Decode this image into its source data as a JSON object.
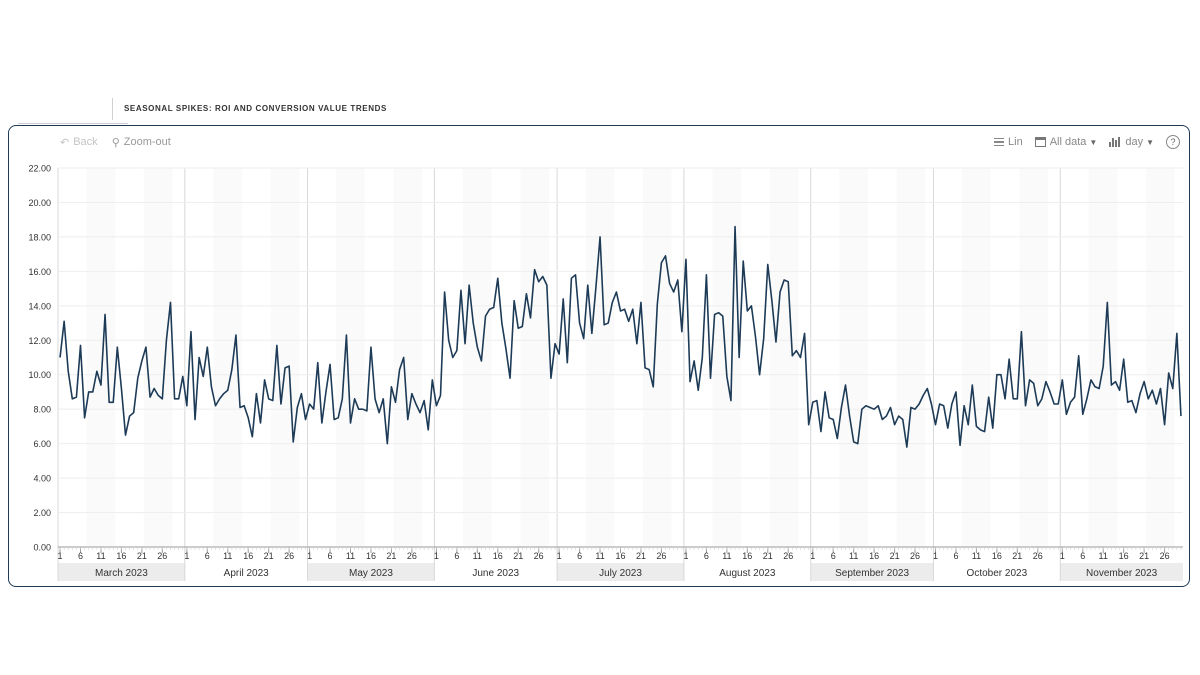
{
  "header": {
    "title": "SEASONAL SPIKES: ROI AND CONVERSION VALUE TRENDS"
  },
  "toolbar": {
    "back_label": "Back",
    "zoom_out_label": "Zoom-out",
    "scale_label": "Lin",
    "range_label": "All data",
    "granularity_label": "day",
    "help_label": "?",
    "icons": {
      "back": "back-arrow-icon",
      "zoom": "magnifier-minus-icon",
      "scale": "list-icon",
      "range": "calendar-icon",
      "granularity": "bar-chart-icon",
      "help": "help-icon"
    }
  },
  "colors": {
    "line": "#1d3b57",
    "frame": "#1d3b57",
    "band": "#ececec",
    "grid": "#eeeeee"
  },
  "chart_data": {
    "type": "line",
    "title": "SEASONAL SPIKES: ROI AND CONVERSION VALUE TRENDS",
    "xlabel": "",
    "ylabel": "",
    "ylim": [
      0,
      22
    ],
    "y_ticks": [
      "0.00",
      "2.00",
      "4.00",
      "6.00",
      "8.00",
      "10.00",
      "12.00",
      "14.00",
      "16.00",
      "18.00",
      "20.00",
      "22.00"
    ],
    "grid": true,
    "legend": "none",
    "x_start": "2023-03-01",
    "x_end": "2023-11-30",
    "months": [
      "March 2023",
      "April 2023",
      "May 2023",
      "June 2023",
      "July 2023",
      "August 2023",
      "September 2023",
      "October 2023",
      "November 2023"
    ],
    "month_days": [
      31,
      30,
      31,
      30,
      31,
      31,
      30,
      31,
      30
    ],
    "day_ticks": [
      "1",
      "6",
      "11",
      "16",
      "21",
      "26"
    ],
    "series": [
      {
        "name": "ROI",
        "values": [
          11.0,
          13.1,
          10.2,
          8.6,
          8.7,
          11.7,
          7.5,
          9.0,
          9.0,
          10.2,
          9.4,
          13.5,
          8.4,
          8.4,
          11.6,
          9.2,
          6.5,
          7.6,
          7.8,
          9.8,
          10.8,
          11.6,
          8.7,
          9.2,
          8.8,
          8.6,
          12.0,
          14.2,
          8.6,
          8.6,
          9.9,
          8.2,
          12.5,
          7.4,
          11.0,
          9.9,
          11.6,
          9.3,
          8.2,
          8.6,
          8.9,
          9.1,
          10.3,
          12.3,
          8.1,
          8.2,
          7.5,
          6.4,
          8.9,
          7.2,
          9.7,
          8.6,
          8.5,
          11.7,
          8.3,
          10.4,
          10.5,
          6.1,
          8.1,
          8.9,
          7.4,
          8.3,
          8.0,
          10.7,
          7.2,
          9.0,
          10.6,
          7.4,
          7.5,
          8.6,
          12.3,
          7.2,
          8.6,
          8.0,
          8.0,
          7.9,
          11.6,
          8.6,
          7.8,
          8.6,
          6.0,
          9.3,
          8.4,
          10.3,
          11.0,
          7.4,
          8.9,
          8.3,
          7.8,
          8.5,
          6.8,
          9.7,
          8.2,
          8.8,
          14.8,
          12.0,
          11.0,
          11.4,
          14.9,
          11.8,
          15.2,
          13.0,
          11.6,
          10.8,
          13.4,
          13.8,
          13.9,
          15.6,
          13.0,
          11.5,
          9.8,
          14.3,
          12.7,
          12.8,
          14.7,
          13.3,
          16.1,
          15.4,
          15.7,
          15.2,
          9.8,
          11.8,
          11.2,
          14.4,
          10.7,
          15.6,
          15.8,
          13.0,
          12.1,
          15.2,
          12.4,
          15.1,
          18.0,
          12.9,
          13.0,
          14.2,
          14.8,
          13.7,
          13.8,
          13.1,
          13.8,
          11.8,
          14.2,
          10.4,
          10.3,
          9.3,
          14.1,
          16.5,
          16.9,
          15.3,
          14.8,
          15.5,
          12.5,
          16.7,
          9.6,
          10.8,
          9.1,
          11.0,
          15.8,
          9.8,
          13.5,
          13.6,
          13.4,
          9.9,
          8.5,
          18.6,
          11.0,
          16.6,
          13.7,
          14.0,
          12.2,
          10.0,
          12.1,
          16.4,
          14.3,
          11.9,
          14.8,
          15.5,
          15.4,
          11.1,
          11.4,
          11.0,
          12.4,
          7.1,
          8.4,
          8.5,
          6.7,
          9.0,
          7.5,
          7.4,
          6.3,
          8.1,
          9.4,
          7.6,
          6.1,
          6.0,
          8.0,
          8.2,
          8.1,
          8.0,
          8.2,
          7.4,
          7.6,
          8.1,
          7.1,
          7.6,
          7.4,
          5.8,
          8.1,
          8.0,
          8.3,
          8.8,
          9.2,
          8.3,
          7.1,
          8.3,
          8.2,
          6.9,
          8.3,
          9.0,
          5.9,
          8.2,
          7.1,
          9.4,
          7.0,
          6.8,
          6.7,
          8.7,
          6.9,
          10.0,
          10.0,
          8.6,
          10.9,
          8.6,
          8.6,
          12.5,
          8.2,
          9.7,
          9.5,
          8.2,
          8.6,
          9.6,
          9.0,
          8.3,
          8.3,
          9.7,
          7.7,
          8.4,
          8.7,
          11.1,
          7.7,
          8.6,
          9.7,
          9.3,
          9.2,
          10.5,
          14.2,
          9.4,
          9.6,
          9.1,
          10.9,
          8.4,
          8.5,
          7.8,
          8.9,
          9.6,
          8.6,
          9.1,
          8.3,
          9.2,
          7.1,
          10.1,
          9.2,
          12.4,
          7.6
        ]
      }
    ]
  }
}
